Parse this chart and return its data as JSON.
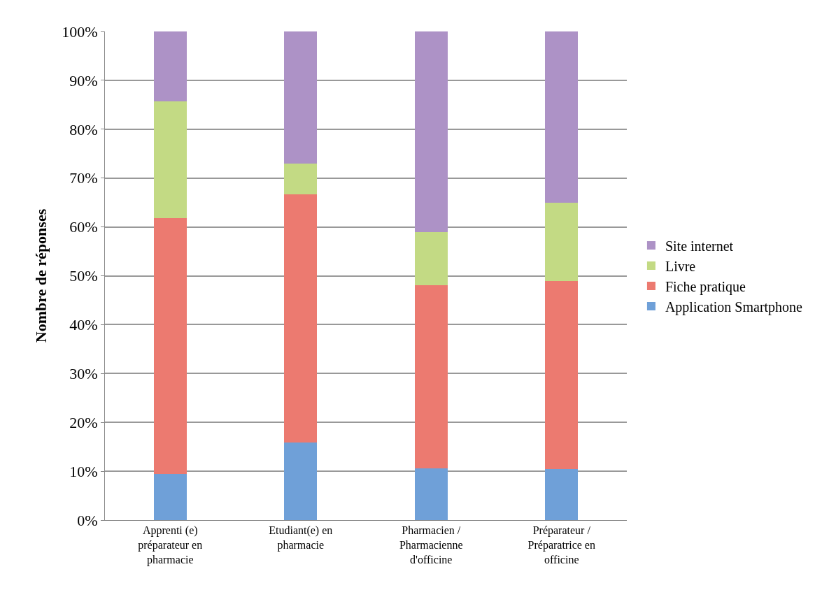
{
  "chart_data": {
    "type": "bar",
    "stacked": true,
    "ylabel": "Nombre de réponses",
    "categories": [
      "Apprenti (e) préparateur en pharmacie",
      "Etudiant(e) en pharmacie",
      "Pharmacien / Pharmacienne d'officine",
      "Préparateur / Préparatrice en officine"
    ],
    "series": [
      {
        "name": "Application Smartphone",
        "color": "#6fa0d8",
        "values": [
          9.5,
          15.9,
          10.6,
          10.4
        ]
      },
      {
        "name": "Fiche pratique",
        "color": "#ec7a70",
        "values": [
          52.3,
          50.8,
          37.4,
          38.5
        ]
      },
      {
        "name": "Livre",
        "color": "#c3da84",
        "values": [
          23.9,
          6.3,
          10.9,
          16.1
        ]
      },
      {
        "name": "Site internet",
        "color": "#ad92c6",
        "values": [
          14.3,
          27.0,
          41.1,
          35.0
        ]
      }
    ],
    "ylim": [
      0,
      100
    ],
    "yticks": [
      {
        "value": 0,
        "label": "0%"
      },
      {
        "value": 10,
        "label": "10%"
      },
      {
        "value": 20,
        "label": "20%"
      },
      {
        "value": 30,
        "label": "30%"
      },
      {
        "value": 40,
        "label": "40%"
      },
      {
        "value": 50,
        "label": "50%"
      },
      {
        "value": 60,
        "label": "60%"
      },
      {
        "value": 70,
        "label": "70%"
      },
      {
        "value": 80,
        "label": "80%"
      },
      {
        "value": 90,
        "label": "90%"
      },
      {
        "value": 100,
        "label": "100%"
      }
    ],
    "grid": "y",
    "legend": "right"
  }
}
